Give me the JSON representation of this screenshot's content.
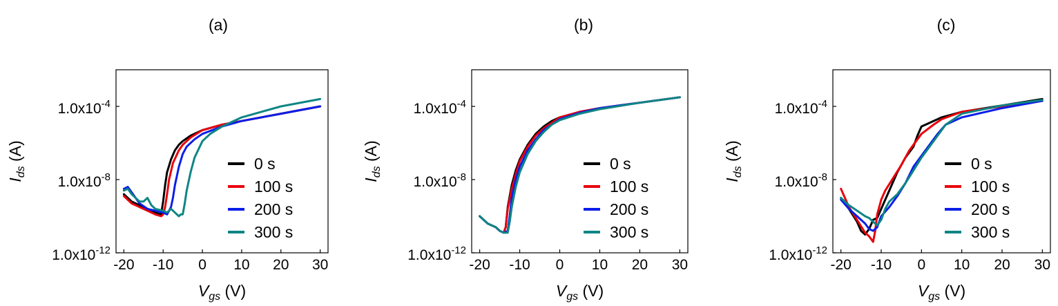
{
  "chart_data": [
    {
      "type": "line",
      "title": "(a)",
      "xlabel": {
        "main": "V",
        "sub": "gs",
        "unit": " (V)"
      },
      "ylabel": {
        "main": "I",
        "sub": "ds",
        "unit": " (A)"
      },
      "xlim": [
        -22,
        32
      ],
      "ylim": [
        -12,
        -2
      ],
      "yscale": "log",
      "xticks": [
        "-20",
        "-10",
        "0",
        "10",
        "20",
        "30"
      ],
      "xtick_values": [
        -20,
        -10,
        0,
        10,
        20,
        30
      ],
      "yticks": [
        {
          "value": -12,
          "base": "1.0x10",
          "exp": "-12"
        },
        {
          "value": -8,
          "base": "1.0x10",
          "exp": "-8"
        },
        {
          "value": -4,
          "base": "1.0x10",
          "exp": "-4"
        }
      ],
      "legend_position": "lower-right",
      "series": [
        {
          "name": "0 s",
          "color": "#000000",
          "x": [
            -20,
            -18,
            -16,
            -14,
            -12,
            -10.5,
            -10,
            -9.5,
            -9,
            -8,
            -7,
            -6,
            -5,
            -3,
            0,
            5,
            10,
            20,
            30
          ],
          "y": [
            -8.8,
            -9.2,
            -9.4,
            -9.6,
            -9.8,
            -9.9,
            -9.2,
            -8.3,
            -7.6,
            -6.9,
            -6.4,
            -6.1,
            -5.9,
            -5.6,
            -5.3,
            -5.0,
            -4.8,
            -4.4,
            -4.0
          ]
        },
        {
          "name": "100 s",
          "color": "#e8000b",
          "x": [
            -20,
            -18,
            -16,
            -14,
            -12,
            -10.5,
            -10,
            -9.5,
            -9,
            -8.5,
            -7.5,
            -6,
            -5,
            -3,
            0,
            5,
            10,
            20,
            30
          ],
          "y": [
            -8.9,
            -9.3,
            -9.5,
            -9.7,
            -9.9,
            -10.0,
            -9.9,
            -9.5,
            -8.8,
            -8.0,
            -7.1,
            -6.4,
            -6.1,
            -5.7,
            -5.3,
            -5.0,
            -4.8,
            -4.4,
            -4.0
          ]
        },
        {
          "name": "200 s",
          "color": "#0b1ee8",
          "x": [
            -20,
            -19,
            -18,
            -16,
            -14,
            -12,
            -10,
            -9,
            -8,
            -7.5,
            -7,
            -6,
            -5,
            -4,
            -2,
            0,
            5,
            10,
            20,
            30
          ],
          "y": [
            -8.5,
            -8.4,
            -8.7,
            -9.3,
            -9.6,
            -9.7,
            -9.8,
            -9.9,
            -9.5,
            -9.0,
            -8.3,
            -7.3,
            -6.6,
            -6.2,
            -5.8,
            -5.5,
            -5.1,
            -4.8,
            -4.4,
            -4.0
          ]
        },
        {
          "name": "300 s",
          "color": "#0e8585",
          "x": [
            -20,
            -19,
            -18,
            -16,
            -15,
            -14,
            -13,
            -12,
            -10,
            -9,
            -8,
            -7,
            -6,
            -5.5,
            -5,
            -4.5,
            -4,
            -3,
            -2,
            0,
            2,
            5,
            10,
            20,
            30
          ],
          "y": [
            -8.6,
            -8.5,
            -8.8,
            -9.2,
            -9.2,
            -9.0,
            -9.4,
            -9.6,
            -9.7,
            -9.8,
            -9.6,
            -9.8,
            -10.0,
            -9.9,
            -9.9,
            -9.3,
            -8.6,
            -7.6,
            -6.8,
            -5.9,
            -5.5,
            -5.1,
            -4.6,
            -4.0,
            -3.6
          ]
        }
      ]
    },
    {
      "type": "line",
      "title": "(b)",
      "xlabel": {
        "main": "V",
        "sub": "gs",
        "unit": " (V)"
      },
      "ylabel": {
        "main": "I",
        "sub": "ds",
        "unit": " (A)"
      },
      "xlim": [
        -22,
        32
      ],
      "ylim": [
        -12,
        -2
      ],
      "yscale": "log",
      "xticks": [
        "-20",
        "-10",
        "0",
        "10",
        "20",
        "30"
      ],
      "xtick_values": [
        -20,
        -10,
        0,
        10,
        20,
        30
      ],
      "yticks": [
        {
          "value": -12,
          "base": "1.0x10",
          "exp": "-12"
        },
        {
          "value": -8,
          "base": "1.0x10",
          "exp": "-8"
        },
        {
          "value": -4,
          "base": "1.0x10",
          "exp": "-4"
        }
      ],
      "legend_position": "lower-right",
      "series": [
        {
          "name": "0 s",
          "color": "#000000",
          "x": [
            -20,
            -19,
            -18,
            -17,
            -16,
            -15,
            -14,
            -13.5,
            -13,
            -12,
            -11,
            -10,
            -8,
            -6,
            -4,
            -2,
            0,
            5,
            10,
            20,
            30
          ],
          "y": [
            -10.0,
            -10.2,
            -10.4,
            -10.5,
            -10.6,
            -10.8,
            -10.9,
            -10.6,
            -9.5,
            -8.3,
            -7.5,
            -6.9,
            -6.1,
            -5.5,
            -5.1,
            -4.8,
            -4.6,
            -4.3,
            -4.1,
            -3.8,
            -3.5
          ]
        },
        {
          "name": "100 s",
          "color": "#e8000b",
          "x": [
            -20,
            -19,
            -18,
            -17,
            -16,
            -15,
            -14,
            -13.5,
            -13,
            -12,
            -11,
            -10,
            -8,
            -6,
            -4,
            -2,
            0,
            5,
            10,
            20,
            30
          ],
          "y": [
            -10.0,
            -10.2,
            -10.4,
            -10.5,
            -10.6,
            -10.8,
            -10.9,
            -10.6,
            -9.6,
            -8.5,
            -7.7,
            -7.0,
            -6.2,
            -5.6,
            -5.2,
            -4.9,
            -4.6,
            -4.3,
            -4.1,
            -3.8,
            -3.5
          ]
        },
        {
          "name": "200 s",
          "color": "#0b1ee8",
          "x": [
            -20,
            -19,
            -18,
            -17,
            -16,
            -15,
            -14,
            -13,
            -12.5,
            -12,
            -11,
            -10,
            -8,
            -6,
            -4,
            -2,
            0,
            5,
            10,
            20,
            30
          ],
          "y": [
            -10.0,
            -10.2,
            -10.4,
            -10.5,
            -10.6,
            -10.8,
            -10.9,
            -10.8,
            -10.0,
            -9.0,
            -8.0,
            -7.3,
            -6.4,
            -5.8,
            -5.3,
            -5.0,
            -4.7,
            -4.35,
            -4.1,
            -3.8,
            -3.5
          ]
        },
        {
          "name": "300 s",
          "color": "#0e8585",
          "x": [
            -20,
            -19,
            -18,
            -17,
            -16,
            -15,
            -14,
            -13,
            -12.5,
            -12,
            -11,
            -10,
            -8,
            -6,
            -4,
            -2,
            0,
            5,
            10,
            20,
            30
          ],
          "y": [
            -10.0,
            -10.2,
            -10.4,
            -10.5,
            -10.6,
            -10.8,
            -10.9,
            -10.9,
            -10.3,
            -9.5,
            -8.4,
            -7.6,
            -6.6,
            -5.9,
            -5.4,
            -5.0,
            -4.75,
            -4.4,
            -4.15,
            -3.8,
            -3.5
          ]
        }
      ]
    },
    {
      "type": "line",
      "title": "(c)",
      "xlabel": {
        "main": "V",
        "sub": "gs",
        "unit": " (V)"
      },
      "ylabel": {
        "main": "I",
        "sub": "ds",
        "unit": " (A)"
      },
      "xlim": [
        -22,
        32
      ],
      "ylim": [
        -12,
        -2
      ],
      "yscale": "log",
      "xticks": [
        "-20",
        "-10",
        "0",
        "10",
        "20",
        "30"
      ],
      "xtick_values": [
        -20,
        -10,
        0,
        10,
        20,
        30
      ],
      "yticks": [
        {
          "value": -12,
          "base": "1.0x10",
          "exp": "-12"
        },
        {
          "value": -8,
          "base": "1.0x10",
          "exp": "-8"
        },
        {
          "value": -4,
          "base": "1.0x10",
          "exp": "-4"
        }
      ],
      "legend_position": "lower-right",
      "series": [
        {
          "name": "0 s",
          "color": "#000000",
          "x": [
            -20,
            -18,
            -16,
            -15,
            -14,
            -13,
            -12,
            -11,
            -10,
            -8,
            -6,
            -4,
            -2,
            -1,
            0,
            2,
            5,
            10,
            20,
            30
          ],
          "y": [
            -9.0,
            -9.6,
            -10.3,
            -10.8,
            -11.0,
            -10.7,
            -10.2,
            -10.1,
            -9.6,
            -8.6,
            -7.6,
            -6.8,
            -6.2,
            -5.6,
            -5.1,
            -4.9,
            -4.6,
            -4.3,
            -3.95,
            -3.6
          ]
        },
        {
          "name": "100 s",
          "color": "#e8000b",
          "x": [
            -20,
            -19,
            -18,
            -16,
            -14,
            -13,
            -12,
            -11.5,
            -11,
            -10,
            -9,
            -7,
            -5,
            -3,
            -1,
            0,
            3,
            5,
            10,
            20,
            30
          ],
          "y": [
            -8.5,
            -9.0,
            -9.5,
            -10.2,
            -10.9,
            -11.1,
            -11.4,
            -10.8,
            -9.9,
            -9.1,
            -8.6,
            -7.9,
            -7.2,
            -6.4,
            -5.8,
            -5.5,
            -5.0,
            -4.7,
            -4.3,
            -4.0,
            -3.7
          ]
        },
        {
          "name": "200 s",
          "color": "#0b1ee8",
          "x": [
            -20,
            -18,
            -16,
            -14,
            -13,
            -12,
            -11,
            -10,
            -8,
            -6,
            -4,
            -2,
            0,
            2,
            4,
            6,
            10,
            20,
            30
          ],
          "y": [
            -9.1,
            -9.6,
            -10.0,
            -10.4,
            -10.7,
            -10.8,
            -10.6,
            -10.0,
            -9.5,
            -8.9,
            -8.2,
            -7.3,
            -6.7,
            -6.1,
            -5.5,
            -5.0,
            -4.6,
            -4.1,
            -3.7
          ]
        },
        {
          "name": "300 s",
          "color": "#0e8585",
          "x": [
            -20,
            -18,
            -16,
            -14,
            -13,
            -12,
            -11,
            -10,
            -9,
            -8,
            -6,
            -4,
            -2,
            0,
            2,
            4,
            6,
            10,
            20,
            30
          ],
          "y": [
            -9.0,
            -9.4,
            -9.7,
            -10.0,
            -10.1,
            -10.3,
            -10.5,
            -10.2,
            -9.6,
            -9.2,
            -8.8,
            -8.2,
            -7.5,
            -6.8,
            -6.2,
            -5.6,
            -5.0,
            -4.4,
            -3.95,
            -3.65
          ]
        }
      ]
    }
  ]
}
